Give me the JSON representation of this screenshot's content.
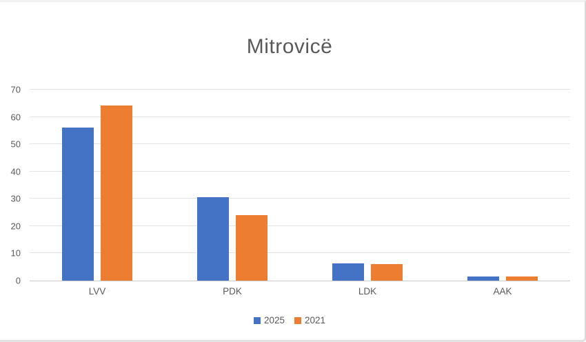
{
  "chart_data": {
    "type": "bar",
    "title": "Mitrovicë",
    "categories": [
      "LVV",
      "PDK",
      "LDK",
      "AAK"
    ],
    "series": [
      {
        "name": "2025",
        "color": "#4472C4",
        "values": [
          56.1,
          30.7,
          6.3,
          1.4
        ]
      },
      {
        "name": "2021",
        "color": "#ED7D31",
        "values": [
          64.3,
          24.1,
          6.1,
          1.6
        ]
      }
    ],
    "xlabel": "",
    "ylabel": "",
    "ylim": [
      0,
      70
    ],
    "yticks": [
      0,
      10,
      20,
      30,
      40,
      50,
      60,
      70
    ],
    "grid": true,
    "legend_position": "bottom"
  },
  "colors": {
    "title_text": "#595959",
    "axis_text": "#595959",
    "gridline": "#e2e2e2",
    "axis_line": "#c9c9c9",
    "series_2025": "#4472C4",
    "series_2021": "#ED7D31",
    "panel_background": "#ffffff",
    "panel_border": "#d9d9d9"
  }
}
